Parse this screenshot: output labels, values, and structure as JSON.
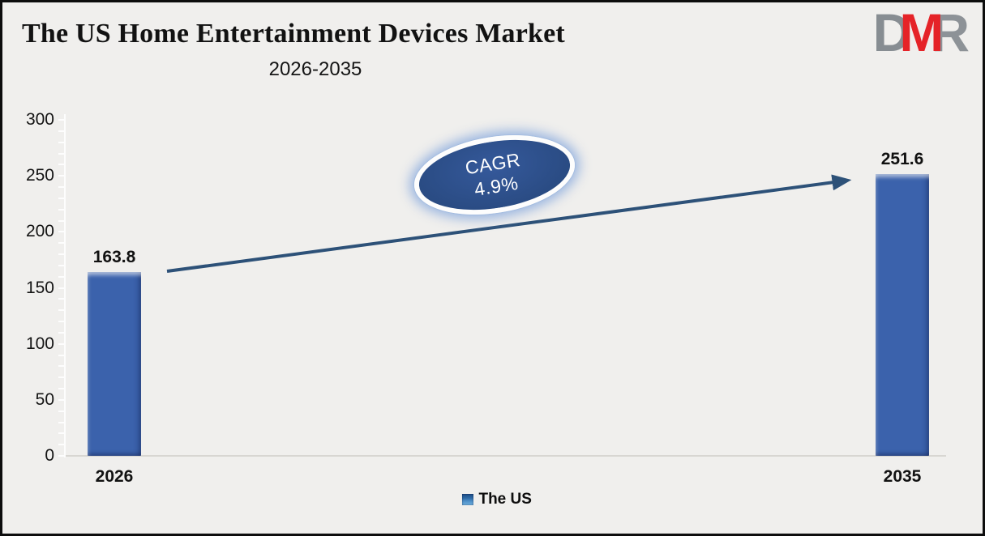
{
  "page": {
    "background": "#f0efed",
    "border_color": "#0d0d0d"
  },
  "header": {
    "title": "The US Home Entertainment Devices Market",
    "subtitle": "2026-2035"
  },
  "logo": {
    "letters": [
      {
        "char": "D",
        "color": "#878d92"
      },
      {
        "char": "M",
        "color": "#e52328"
      },
      {
        "char": "R",
        "color": "#8d9297"
      }
    ]
  },
  "chart_data": {
    "type": "bar",
    "title": "The US Home Entertainment Devices Market",
    "subtitle": "2026-2035",
    "categories": [
      "2026",
      "2035"
    ],
    "series": [
      {
        "name": "The US",
        "values": [
          163.8,
          251.6
        ]
      }
    ],
    "data_labels": [
      "163.8",
      "251.6"
    ],
    "xlabel": "",
    "ylabel": "",
    "ylim": [
      0,
      300
    ],
    "yticks": [
      0,
      50,
      100,
      150,
      200,
      250,
      300
    ],
    "minor_tick_step": 10,
    "grid": false,
    "legend_position": "bottom-center",
    "bar_color": "#3b62ac",
    "axis_line_color": "#fdfdfd",
    "baseline_color": "#d8d6d2",
    "arrow_color": "#2d5178",
    "annotation": {
      "line1": "CAGR",
      "line2": "4.9%",
      "fill_dark": "#28497f",
      "fill_light": "#35599b",
      "ring_color": "#fdfdfd",
      "text_color": "#ffffff",
      "rotation_deg": -9
    }
  },
  "legend": {
    "label": "The US",
    "marker_color": "#3a71b0"
  }
}
